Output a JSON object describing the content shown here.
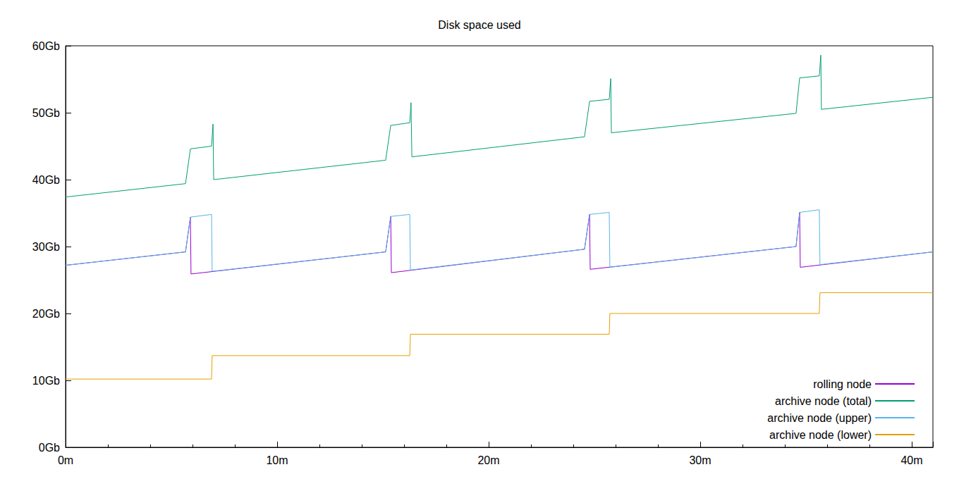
{
  "chart_data": {
    "type": "line",
    "title": "Disk space used",
    "xlim": [
      0,
      41
    ],
    "xticks": [
      {
        "value": 0,
        "label": "0m"
      },
      {
        "value": 10,
        "label": "10m"
      },
      {
        "value": 20,
        "label": "20m"
      },
      {
        "value": 30,
        "label": "30m"
      },
      {
        "value": 40,
        "label": "40m"
      }
    ],
    "ylim": [
      0,
      60
    ],
    "yticks": [
      {
        "value": 0,
        "label": "0Gb"
      },
      {
        "value": 10,
        "label": "10Gb"
      },
      {
        "value": 20,
        "label": "20Gb"
      },
      {
        "value": 30,
        "label": "30Gb"
      },
      {
        "value": 40,
        "label": "40Gb"
      },
      {
        "value": 50,
        "label": "50Gb"
      },
      {
        "value": 60,
        "label": "60Gb"
      }
    ],
    "grid": false,
    "legend": "lower right",
    "series": [
      {
        "name": "rolling node",
        "color": "#9400d3",
        "x": [
          0,
          5.67,
          5.9,
          5.93,
          15.13,
          15.37,
          15.4,
          24.53,
          24.77,
          24.8,
          34.53,
          34.7,
          34.73,
          41
        ],
        "values": [
          27.2,
          29.2,
          34.4,
          25.9,
          29.2,
          34.5,
          26.1,
          29.6,
          34.8,
          26.6,
          30.0,
          35.1,
          26.9,
          29.2
        ]
      },
      {
        "name": "archive node (total)",
        "color": "#009e73",
        "x": [
          0,
          5.67,
          5.9,
          6.9,
          6.97,
          7.0,
          15.13,
          15.37,
          16.27,
          16.33,
          16.37,
          24.53,
          24.77,
          25.7,
          25.77,
          25.8,
          34.53,
          34.7,
          35.63,
          35.7,
          35.73,
          41
        ],
        "values": [
          37.4,
          39.4,
          44.6,
          45.0,
          48.3,
          40.0,
          42.9,
          48.1,
          48.5,
          51.5,
          43.4,
          46.4,
          51.7,
          52.0,
          55.1,
          47.0,
          49.9,
          55.2,
          55.5,
          58.6,
          50.5,
          52.3
        ]
      },
      {
        "name": "archive node (upper)",
        "color": "#56b4e9",
        "x": [
          0,
          5.67,
          5.9,
          6.9,
          6.93,
          15.13,
          15.37,
          16.27,
          16.3,
          24.53,
          24.77,
          25.7,
          25.73,
          34.53,
          34.7,
          35.63,
          35.66,
          41
        ],
        "values": [
          27.2,
          29.2,
          34.4,
          34.8,
          26.3,
          29.2,
          34.5,
          34.8,
          26.5,
          29.6,
          34.8,
          35.1,
          26.9,
          30.0,
          35.1,
          35.5,
          27.3,
          29.2
        ]
      },
      {
        "name": "archive node (lower)",
        "color": "#e69f00",
        "x": [
          0,
          6.9,
          6.93,
          16.27,
          16.3,
          25.7,
          25.73,
          35.63,
          35.66,
          41
        ],
        "values": [
          10.2,
          10.2,
          13.7,
          13.7,
          16.9,
          16.9,
          20.0,
          20.0,
          23.1,
          23.1
        ]
      }
    ]
  }
}
